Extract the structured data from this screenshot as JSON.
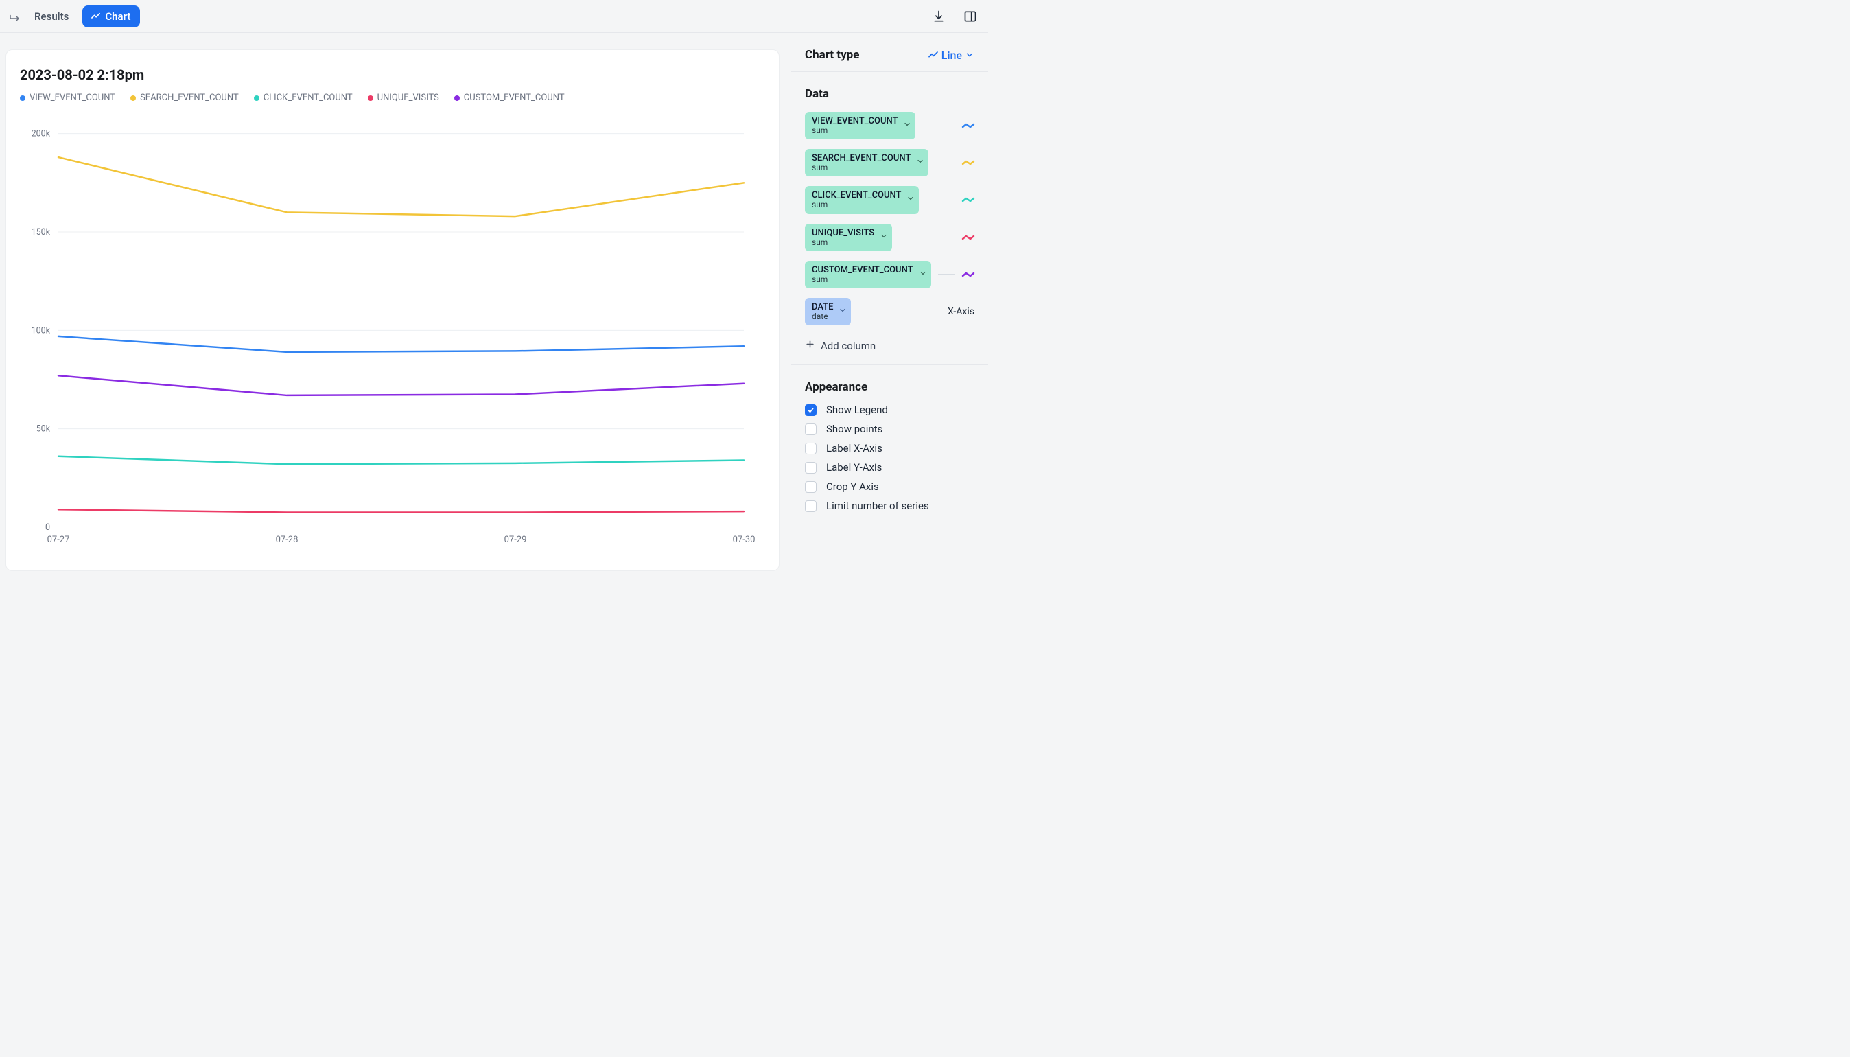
{
  "toolbar": {
    "results_label": "Results",
    "chart_label": "Chart"
  },
  "chart": {
    "title": "2023-08-02 2:18pm",
    "type": "line",
    "x_categories": [
      "07-27",
      "07-28",
      "07-29",
      "07-30"
    ],
    "y_ticks": [
      0,
      50000,
      100000,
      150000,
      200000
    ],
    "y_tick_labels": [
      "0",
      "50k",
      "100k",
      "150k",
      "200k"
    ],
    "ylim": [
      0,
      210000
    ],
    "background_color": "#ffffff",
    "grid_color": "#eceff2",
    "line_width": 2.5,
    "series": [
      {
        "name": "VIEW_EVENT_COUNT",
        "color": "#3284f2",
        "values": [
          97000,
          89000,
          89500,
          92000
        ]
      },
      {
        "name": "SEARCH_EVENT_COUNT",
        "color": "#f2c438",
        "values": [
          188000,
          160000,
          158000,
          175000
        ]
      },
      {
        "name": "CLICK_EVENT_COUNT",
        "color": "#2fd2c0",
        "values": [
          36000,
          32000,
          32500,
          34000
        ]
      },
      {
        "name": "UNIQUE_VISITS",
        "color": "#ec3b66",
        "values": [
          9000,
          7500,
          7500,
          8000
        ]
      },
      {
        "name": "CUSTOM_EVENT_COUNT",
        "color": "#8a2be2",
        "values": [
          77000,
          67000,
          67500,
          73000
        ]
      }
    ]
  },
  "sidebar": {
    "chart_type_label": "Chart type",
    "chart_type_value": "Line",
    "data_label": "Data",
    "series_pills": [
      {
        "name": "VIEW_EVENT_COUNT",
        "agg": "sum",
        "color": "#3284f2"
      },
      {
        "name": "SEARCH_EVENT_COUNT",
        "agg": "sum",
        "color": "#f2c438"
      },
      {
        "name": "CLICK_EVENT_COUNT",
        "agg": "sum",
        "color": "#2fd2c0"
      },
      {
        "name": "UNIQUE_VISITS",
        "agg": "sum",
        "color": "#ec3b66"
      },
      {
        "name": "CUSTOM_EVENT_COUNT",
        "agg": "sum",
        "color": "#8a2be2"
      }
    ],
    "x_pill": {
      "name": "DATE",
      "agg": "date",
      "axis_label": "X-Axis"
    },
    "add_column_label": "Add column",
    "appearance_label": "Appearance",
    "appearance_options": [
      {
        "label": "Show Legend",
        "checked": true
      },
      {
        "label": "Show points",
        "checked": false
      },
      {
        "label": "Label X-Axis",
        "checked": false
      },
      {
        "label": "Label Y-Axis",
        "checked": false
      },
      {
        "label": "Crop Y Axis",
        "checked": false
      },
      {
        "label": "Limit number of series",
        "checked": false
      }
    ]
  }
}
